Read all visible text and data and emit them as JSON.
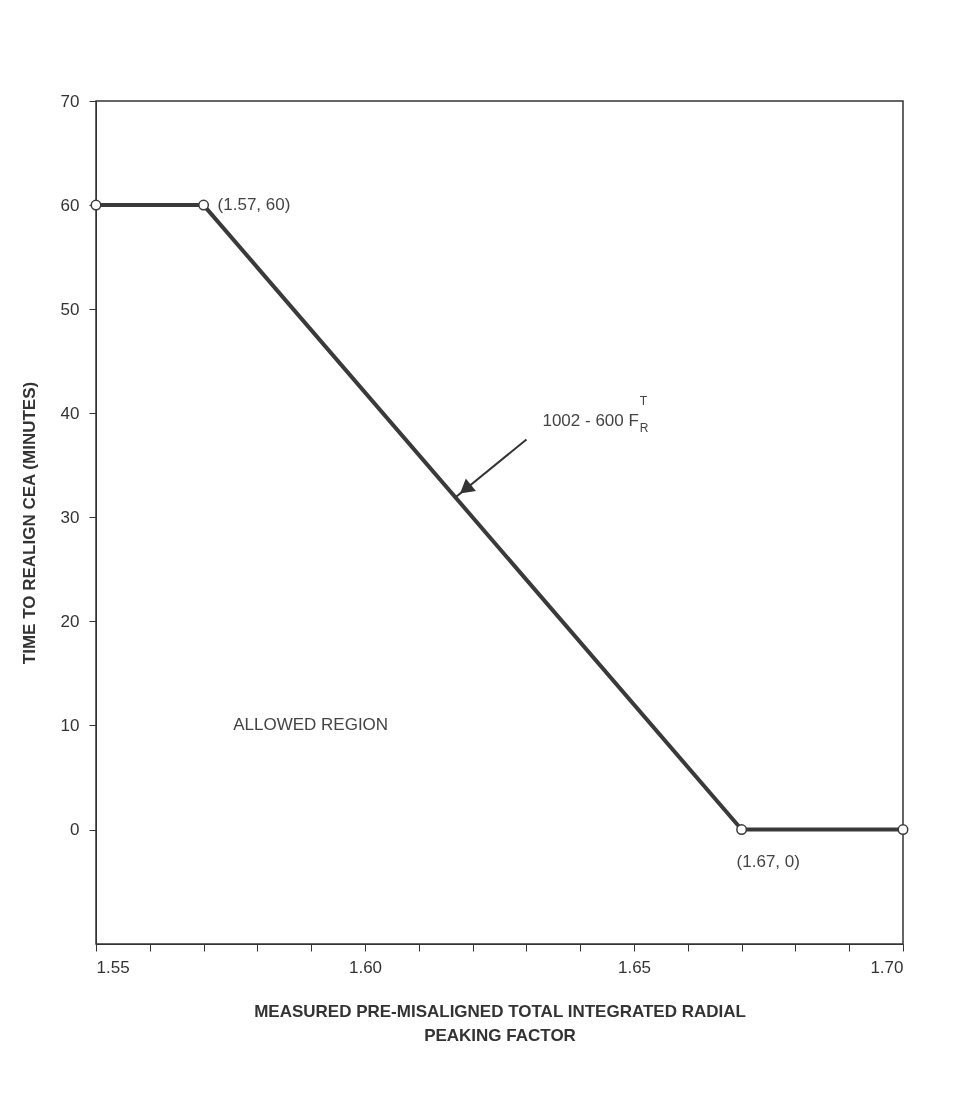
{
  "chart_data": {
    "type": "line",
    "xlabel": "MEASURED PRE-MISALIGNED TOTAL INTEGRATED RADIAL PEAKING FACTOR",
    "ylabel": "TIME TO REALIGN CEA (MINUTES)",
    "x": [
      1.55,
      1.57,
      1.67,
      1.7
    ],
    "series": [
      {
        "color": "#3a3a3a",
        "values": [
          60,
          60,
          0,
          0
        ]
      }
    ],
    "marker": "circle",
    "line_style": "solid",
    "grid": false,
    "xlim": [
      1.55,
      1.7
    ],
    "xticks": [
      1.55,
      {
        "value": 1.56,
        "label": null
      },
      {
        "value": 1.57,
        "label": null
      },
      {
        "value": 1.58,
        "label": null
      },
      {
        "value": 1.59,
        "label": null
      },
      {
        "value": 1.6,
        "label": "1.60"
      },
      {
        "value": 1.61,
        "label": null
      },
      {
        "value": 1.62,
        "label": null
      },
      {
        "value": 1.63,
        "label": null
      },
      {
        "value": 1.64,
        "label": null
      },
      1.65,
      {
        "value": 1.66,
        "label": null
      },
      {
        "value": 1.67,
        "label": null
      },
      {
        "value": 1.68,
        "label": null
      },
      {
        "value": 1.69,
        "label": null
      },
      {
        "value": 1.7,
        "label": "1.70"
      }
    ],
    "ylim": [
      -11,
      70
    ],
    "yticks": [
      0,
      10,
      20,
      30,
      40,
      50,
      60,
      70
    ],
    "annotations": [
      {
        "text": "(1.57, 60)",
        "x": 1.57,
        "y": 60
      },
      {
        "text": "(1.67, 0)",
        "x": 1.67,
        "y": 0
      },
      {
        "text": "1002 - 600 F$^{T}$$_{R}$",
        "x": 1.617,
        "y": 32
      },
      "ALLOWED REGION"
    ]
  }
}
